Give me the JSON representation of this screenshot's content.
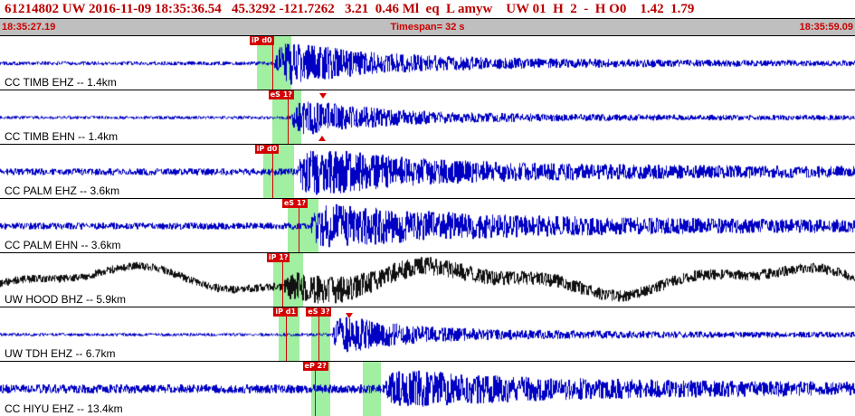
{
  "header": {
    "line": "61214802 UW 2016-11-09 18:35:36.54   45.3292 -121.7262   3.21  0.46 Ml  eq  L amyw    UW 01  H  2  -  H O0    1.42  1.79"
  },
  "timebar": {
    "start": "18:35:27.19",
    "timespan": "Timespan= 32 s",
    "end": "18:35:59.09"
  },
  "colors": {
    "header_text": "#bb0000",
    "timebar_bg": "#bfbfbf",
    "timebar_text": "#cc0000",
    "band": "rgba(110,230,110,0.65)",
    "pick": "#d40000",
    "trace_blue": "#0000c4",
    "trace_black": "#111111"
  },
  "traces": [
    {
      "label": "CC TIMB EHZ -- 1.4km",
      "color": "#0000c4",
      "seed": 101,
      "wave": {
        "noise": 2.2,
        "onset": 0.32,
        "peak": 22,
        "decay": 0.1,
        "coda": 5,
        "coda_decay": 0.45
      },
      "bands": [
        [
          0.3,
          0.341
        ]
      ],
      "picks": [
        {
          "label": "iP d0",
          "box_f": 0.292,
          "line_f": 0.318
        }
      ],
      "markers": []
    },
    {
      "label": "CC TIMB EHN -- 1.4km",
      "color": "#0000c4",
      "seed": 202,
      "wave": {
        "noise": 1.8,
        "onset": 0.34,
        "peak": 20,
        "decay": 0.08,
        "coda": 4,
        "coda_decay": 0.45
      },
      "bands": [
        [
          0.318,
          0.352
        ]
      ],
      "picks": [
        {
          "label": "eS 1?",
          "box_f": 0.314,
          "line_f": 0.337
        }
      ],
      "markers": [
        {
          "f": 0.374,
          "v": 0.05,
          "dir": "down"
        },
        {
          "f": 0.372,
          "v": 0.84,
          "dir": "up"
        }
      ]
    },
    {
      "label": "CC PALM EHZ -- 3.6km",
      "color": "#0000c4",
      "seed": 303,
      "wave": {
        "noise": 3.8,
        "onset": 0.348,
        "peak": 22,
        "decay": 0.12,
        "coda": 6,
        "coda_decay": 0.8
      },
      "bands": [
        [
          0.308,
          0.344
        ]
      ],
      "picks": [
        {
          "label": "iP d0",
          "box_f": 0.298,
          "line_f": 0.318
        }
      ],
      "markers": []
    },
    {
      "label": "CC PALM EHN -- 3.6km",
      "color": "#0000c4",
      "seed": 404,
      "wave": {
        "noise": 3.8,
        "onset": 0.364,
        "peak": 17,
        "decay": 0.15,
        "coda": 7,
        "coda_decay": 0.9
      },
      "bands": [
        [
          0.336,
          0.372
        ]
      ],
      "picks": [
        {
          "label": "eS 1?",
          "box_f": 0.33,
          "line_f": 0.349
        }
      ],
      "markers": []
    },
    {
      "label": "UW HOOD BHZ -- 5.9km",
      "color": "#111111",
      "seed": 505,
      "wave": {
        "noise": 4.5,
        "onset": 0.332,
        "peak": 12,
        "decay": 0.12,
        "coda": 4,
        "coda_decay": 0.5,
        "lf": {
          "amp": 12,
          "cycles": 2.6,
          "phase": -0.7,
          "amp2": 5,
          "cycles2": 6.3,
          "phase2": 1.1
        }
      },
      "bands": [
        [
          0.32,
          0.355
        ]
      ],
      "picks": [
        {
          "label": "iP 1?",
          "box_f": 0.312,
          "line_f": 0.33
        }
      ],
      "markers": []
    },
    {
      "label": "UW TDH EHZ -- 6.7km",
      "color": "#0000c4",
      "seed": 606,
      "wave": {
        "noise": 1.8,
        "onset": 0.388,
        "peak": 20,
        "decay": 0.07,
        "coda": 4.5,
        "coda_decay": 0.5
      },
      "bands": [
        [
          0.326,
          0.35
        ],
        [
          0.364,
          0.386
        ]
      ],
      "picks": [
        {
          "label": "iP d1",
          "box_f": 0.32,
          "line_f": 0.334
        },
        {
          "label": "eS 3?",
          "box_f": 0.358,
          "line_f": 0.372
        }
      ],
      "markers": [
        {
          "f": 0.404,
          "v": 0.1,
          "dir": "down"
        }
      ]
    },
    {
      "label": "CC HIYU EHZ -- 13.4km",
      "color": "#0000c4",
      "seed": 707,
      "wave": {
        "noise": 5,
        "onset": 0.45,
        "peak": 13,
        "decay": 0.18,
        "coda": 5,
        "coda_decay": 0.7
      },
      "bands": [
        [
          0.364,
          0.386
        ],
        [
          0.424,
          0.446
        ]
      ],
      "picks": [
        {
          "label": "eP 2?",
          "box_f": 0.354,
          "line_f": 0.368
        }
      ],
      "markers": []
    }
  ]
}
